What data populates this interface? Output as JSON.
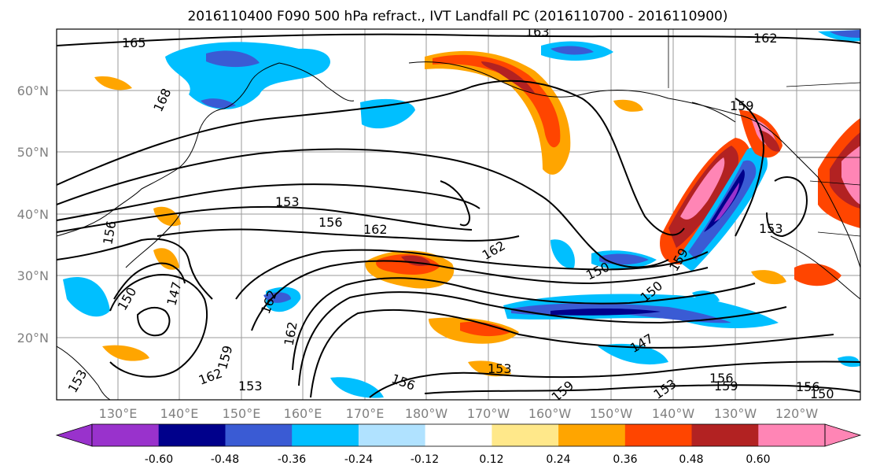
{
  "title": "2016110400 F090 500 hPa refract., IVT Landfall PC (2016110700 - 2016110900)",
  "map": {
    "lat_labels": [
      "60°N",
      "50°N",
      "40°N",
      "30°N",
      "20°N"
    ],
    "lon_labels": [
      "130°E",
      "140°E",
      "150°E",
      "160°E",
      "170°E",
      "180°W",
      "170°W",
      "160°W",
      "150°W",
      "140°W",
      "130°W",
      "120°W"
    ],
    "contour_labels": [
      "165",
      "168",
      "162",
      "159",
      "153",
      "156",
      "162",
      "162",
      "150",
      "150",
      "147",
      "156",
      "162",
      "162",
      "153",
      "153",
      "156",
      "159",
      "153",
      "156",
      "159",
      "156",
      "150",
      "147",
      "150",
      "159",
      "153",
      "163",
      "162",
      "159",
      "153"
    ]
  },
  "colorbar": {
    "colors": [
      "#9932cc",
      "#00008b",
      "#3a5bd4",
      "#00bfff",
      "#b0e2ff",
      "#ffffff",
      "#ffe88a",
      "#ffa500",
      "#ff4500",
      "#b22222",
      "#ff85b5"
    ],
    "ticks": [
      "-0.60",
      "-0.48",
      "-0.36",
      "-0.24",
      "-0.12",
      "0.12",
      "0.24",
      "0.36",
      "0.48",
      "0.60"
    ]
  }
}
